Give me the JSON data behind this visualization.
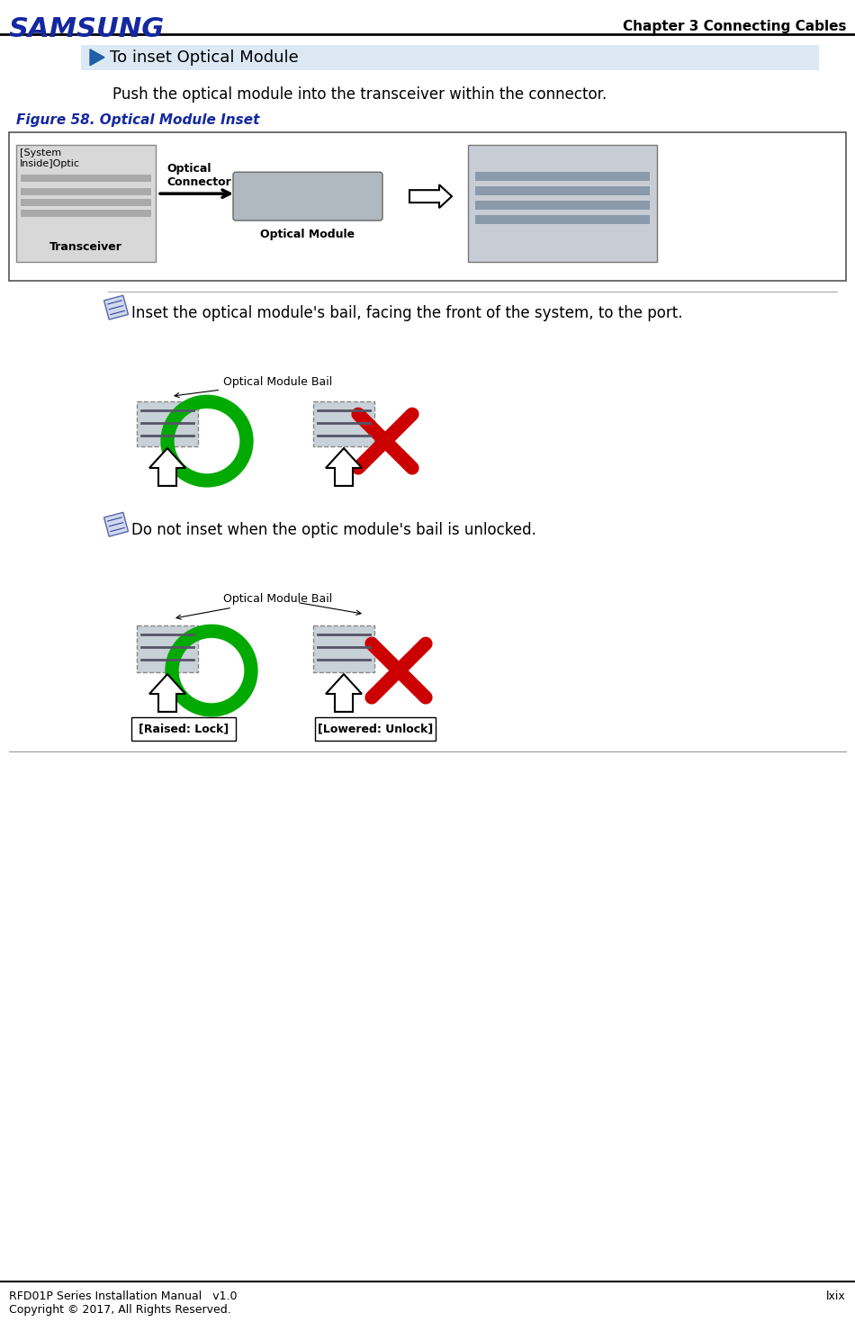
{
  "page_width": 9.5,
  "page_height": 14.69,
  "bg_color": "#ffffff",
  "header_text_left": "SAMSUNG",
  "header_text_right": "Chapter 3 Connecting Cables",
  "header_samsung_color": "#1428A0",
  "header_right_color": "#000000",
  "section_title": "To inset Optical Module",
  "section_bg": "#dce9f5",
  "section_text_color": "#000000",
  "body_text1": "Push the optical module into the transceiver within the connector.",
  "figure_caption": "Figure 58. Optical Module Inset",
  "figure_caption_color": "#1428A0",
  "note1": "Inset the optical module's bail, facing the front of the system, to the port.",
  "note2": "Do not inset when the optic module's bail is unlocked.",
  "note_color": "#000000",
  "label_transceiver": "Transceiver",
  "label_optical_connector": "Optical\nConnector",
  "label_optical_module": "Optical Module",
  "label_system_inside": "[System\nInside]Optic",
  "label_bail_raised": "[Raised: Lock]",
  "label_bail_lowered": "[Lowered: Unlock]",
  "label_optical_module_bail": "Optical Module Bail",
  "footer_left": "RFD01P Series Installation Manual   v1.0\nCopyright © 2017, All Rights Reserved.",
  "footer_right": "lxix",
  "green_color": "#00aa00",
  "red_color": "#cc0000",
  "box_border_color": "#555555",
  "figure_box_bg": "#ffffff",
  "figure_box_border": "#555555"
}
